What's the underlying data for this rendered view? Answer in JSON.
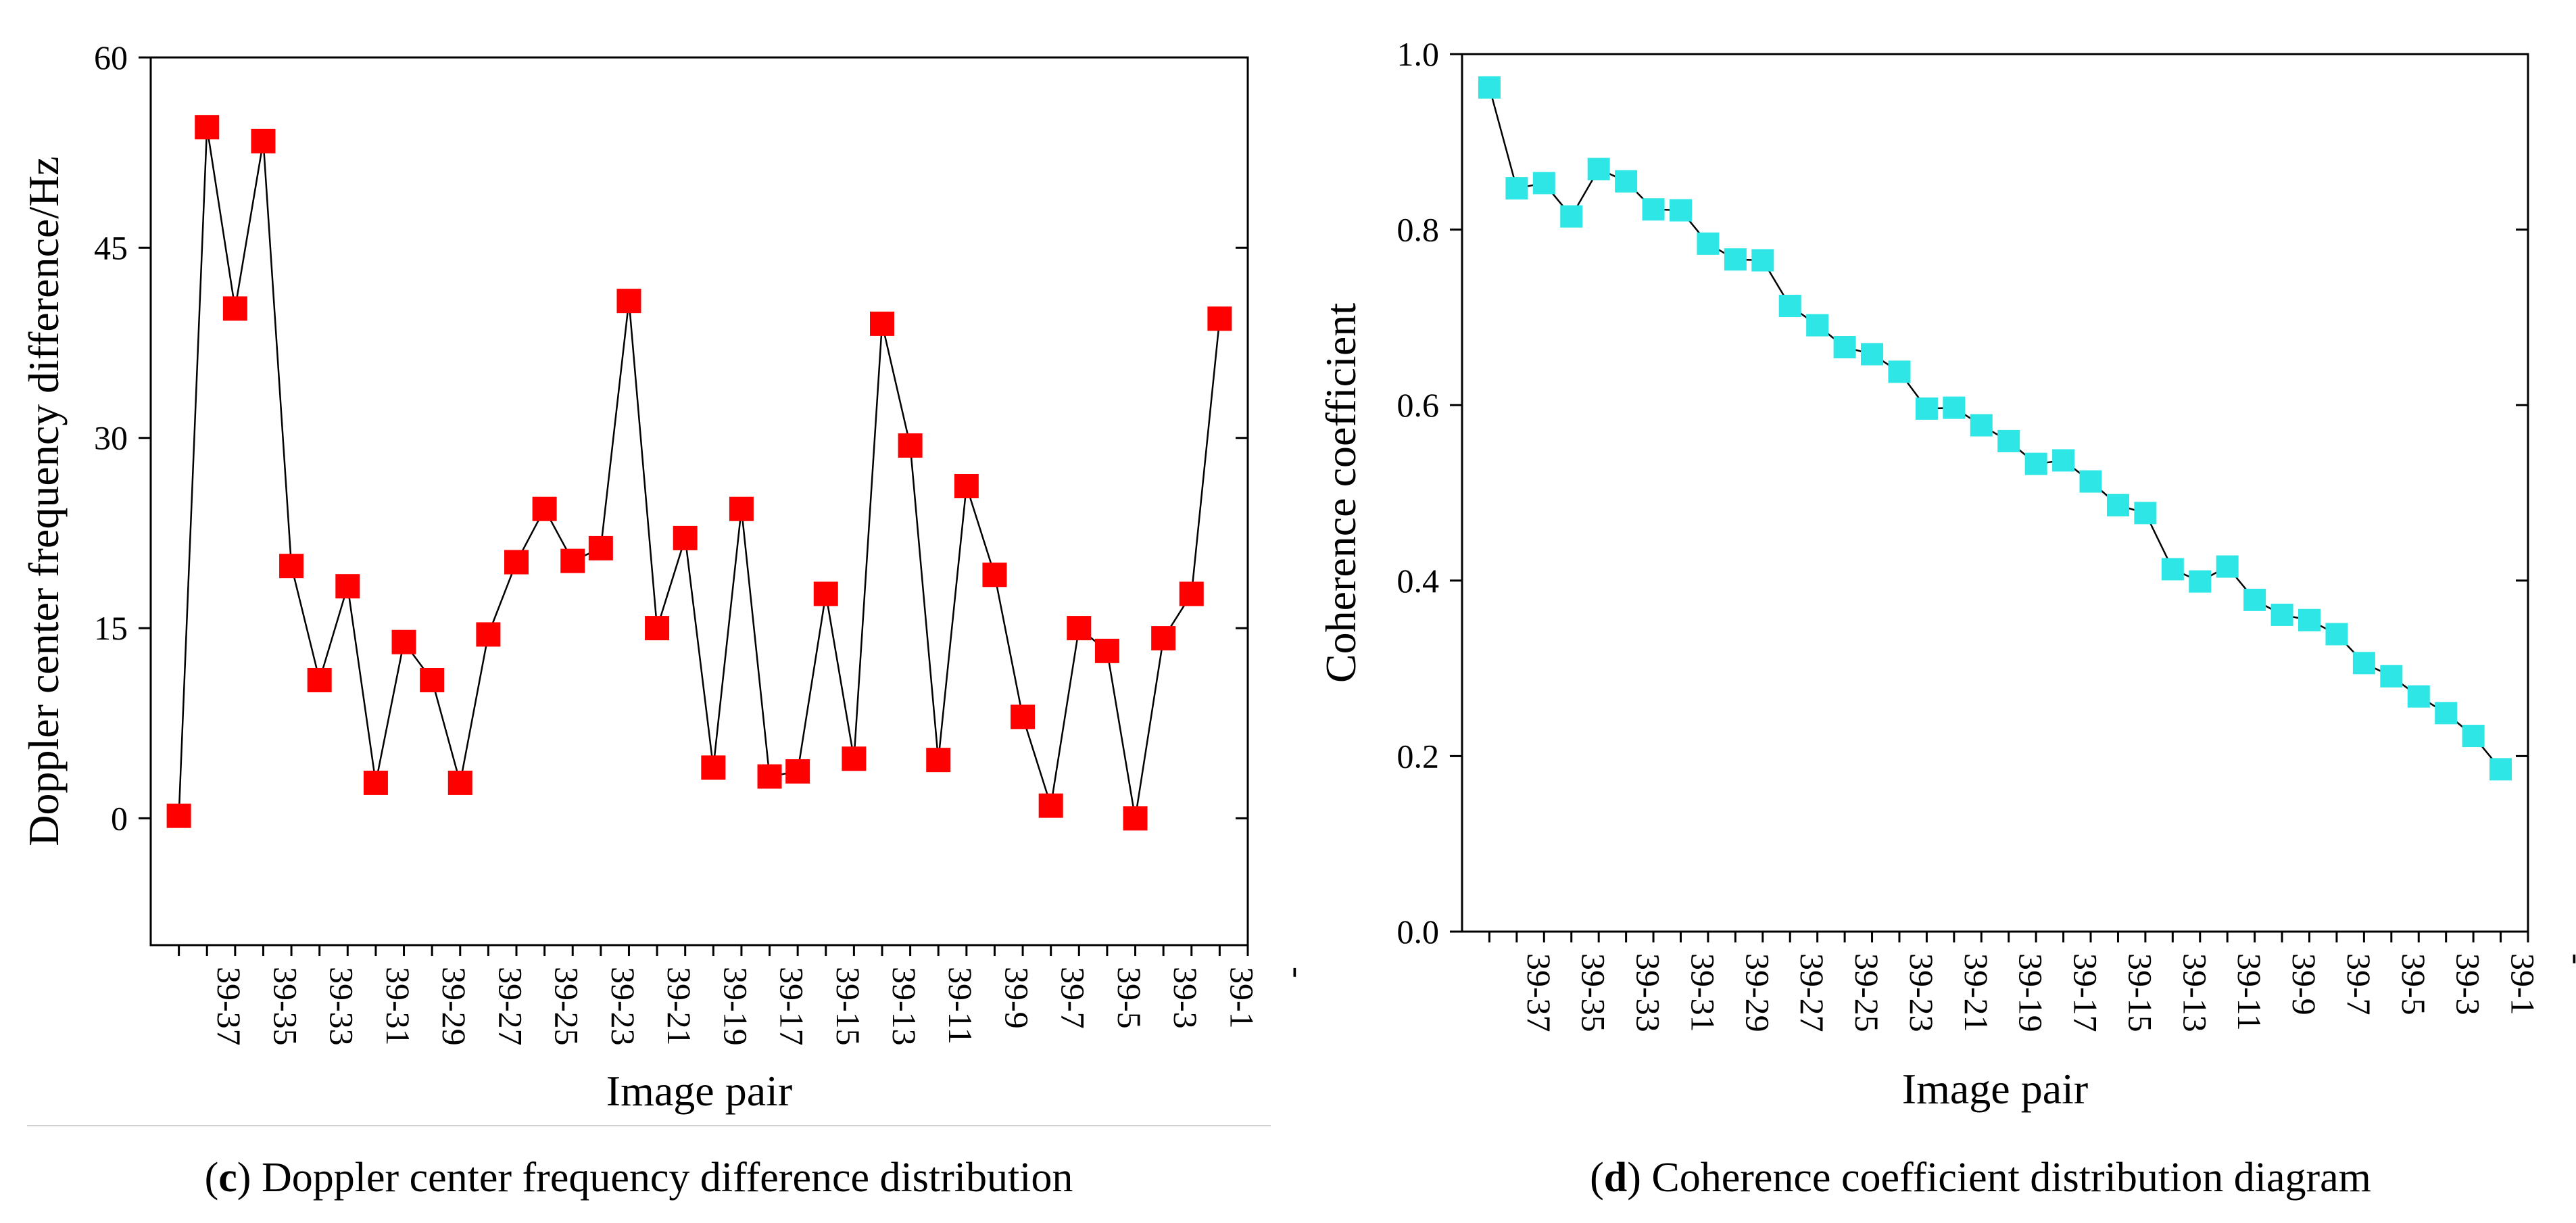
{
  "chart_data": [
    {
      "type": "line",
      "marker": "square",
      "series_color": "#ff0000",
      "line_color": "#000000",
      "caption_letter": "c",
      "caption_text": "Doppler center frequency difference distribution",
      "xlabel": "Image pair",
      "ylabel": "Doppler center frequency difference/Hz",
      "ylim": [
        -10,
        60
      ],
      "yticks": [
        "0",
        "15",
        "30",
        "45",
        "60"
      ],
      "xticks": [
        "39-37",
        "39-35",
        "39-33",
        "39-31",
        "39-29",
        "39-27",
        "39-25",
        "39-23",
        "39-21",
        "39-19",
        "39-17",
        "39-15",
        "39-13",
        "39-11",
        "39-9",
        "39-7",
        "39-5",
        "39-3",
        "39-1",
        "-"
      ],
      "xlim": [
        0,
        39
      ],
      "x": [
        1,
        2,
        3,
        4,
        5,
        6,
        7,
        8,
        9,
        10,
        11,
        12,
        13,
        14,
        15,
        16,
        17,
        18,
        19,
        20,
        21,
        22,
        23,
        24,
        25,
        26,
        27,
        28,
        29,
        30,
        31,
        32,
        33,
        34,
        35,
        36,
        37,
        38
      ],
      "values": [
        0.2,
        54.5,
        40.2,
        53.4,
        19.9,
        10.9,
        18.3,
        2.8,
        13.9,
        10.9,
        2.8,
        14.5,
        20.2,
        24.4,
        20.3,
        21.3,
        40.8,
        15.0,
        22.1,
        4.0,
        24.4,
        3.3,
        3.7,
        17.7,
        4.7,
        39.0,
        29.4,
        4.6,
        26.2,
        19.2,
        8.0,
        1.0,
        15.0,
        13.2,
        0.0,
        14.2,
        17.7,
        39.4
      ]
    },
    {
      "type": "line",
      "marker": "square",
      "series_color": "#2ee6e6",
      "line_color": "#000000",
      "caption_letter": "d",
      "caption_text": "Coherence coefficient distribution diagram",
      "xlabel": "Image pair",
      "ylabel": "Coherence coefficient",
      "ylim": [
        0.0,
        1.0
      ],
      "yticks": [
        "0.0",
        "0.2",
        "0.4",
        "0.6",
        "0.8",
        "1.0"
      ],
      "xticks": [
        "39-37",
        "39-35",
        "39-33",
        "39-31",
        "39-29",
        "39-27",
        "39-25",
        "39-23",
        "39-21",
        "39-19",
        "39-17",
        "39-15",
        "39-13",
        "39-11",
        "39-9",
        "39-7",
        "39-5",
        "39-3",
        "39-1",
        "-"
      ],
      "xlim": [
        0,
        39
      ],
      "x": [
        1,
        2,
        3,
        4,
        5,
        6,
        7,
        8,
        9,
        10,
        11,
        12,
        13,
        14,
        15,
        16,
        17,
        18,
        19,
        20,
        21,
        22,
        23,
        24,
        25,
        26,
        27,
        28,
        29,
        30,
        31,
        32,
        33,
        34,
        35,
        36,
        37,
        38
      ],
      "values": [
        0.962,
        0.847,
        0.853,
        0.815,
        0.869,
        0.855,
        0.823,
        0.822,
        0.784,
        0.766,
        0.765,
        0.713,
        0.691,
        0.666,
        0.658,
        0.638,
        0.596,
        0.597,
        0.577,
        0.559,
        0.533,
        0.537,
        0.513,
        0.486,
        0.477,
        0.413,
        0.399,
        0.416,
        0.378,
        0.361,
        0.355,
        0.339,
        0.306,
        0.291,
        0.268,
        0.249,
        0.223,
        0.185
      ]
    }
  ]
}
